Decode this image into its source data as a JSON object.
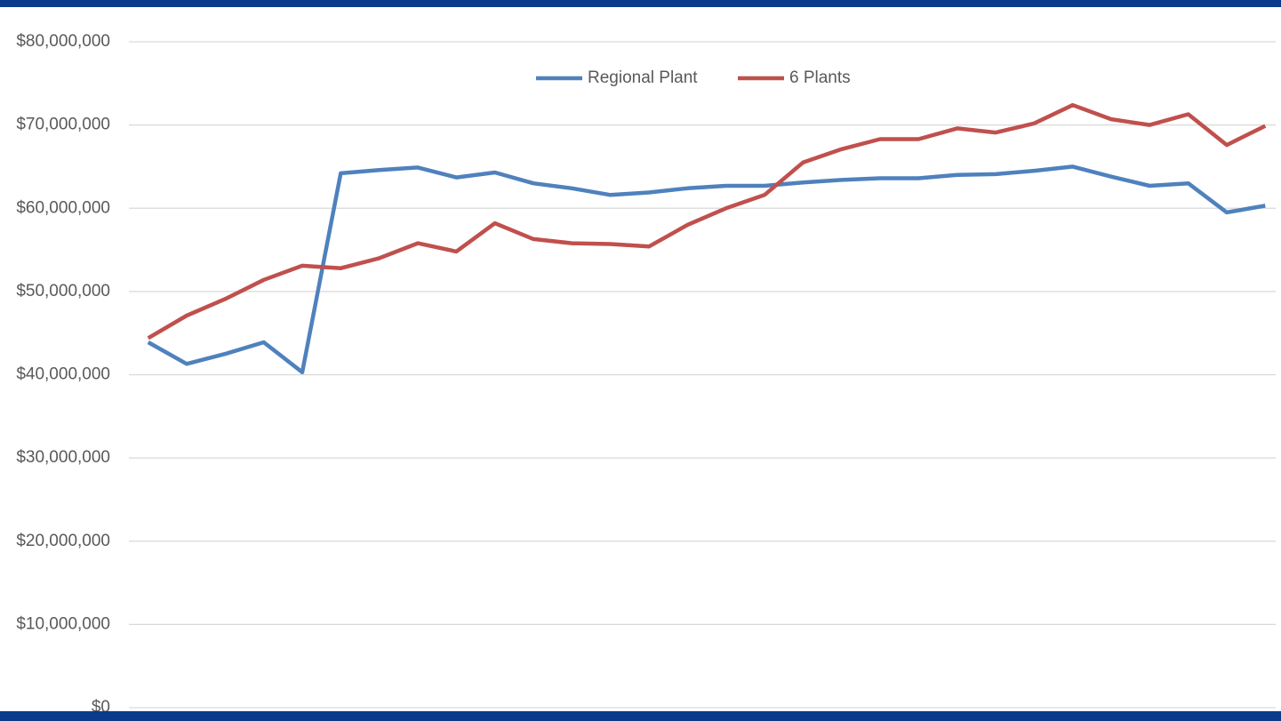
{
  "chart_data": {
    "type": "line",
    "categories": [
      null,
      null,
      null,
      null,
      null,
      null,
      null,
      null,
      null,
      null,
      null,
      null,
      null,
      null,
      null,
      null,
      null,
      null,
      null,
      null,
      null,
      null,
      null,
      null,
      null,
      null,
      null,
      null,
      null,
      null
    ],
    "series": [
      {
        "name": "Regional Plant",
        "color": "#4f81bd",
        "values": [
          43900000,
          41300000,
          42500000,
          43900000,
          40300000,
          64200000,
          64600000,
          64900000,
          63700000,
          64300000,
          63000000,
          62400000,
          61600000,
          61900000,
          62400000,
          62700000,
          62700000,
          63100000,
          63400000,
          63600000,
          63600000,
          64000000,
          64100000,
          64500000,
          65000000,
          63800000,
          62700000,
          63000000,
          59500000,
          60300000
        ]
      },
      {
        "name": "6 Plants",
        "color": "#c0504d",
        "values": [
          44400000,
          47100000,
          49100000,
          51400000,
          53100000,
          52800000,
          54000000,
          55800000,
          54800000,
          58200000,
          56300000,
          55800000,
          55700000,
          55400000,
          58000000,
          60000000,
          61600000,
          65500000,
          67100000,
          68300000,
          68300000,
          69600000,
          69100000,
          70200000,
          72400000,
          70700000,
          70000000,
          71300000,
          67600000,
          69900000
        ]
      }
    ],
    "ylim": [
      0,
      80000000
    ],
    "yticks": [
      {
        "value": 0,
        "label": "$0"
      },
      {
        "value": 10000000,
        "label": "$10,000,000"
      },
      {
        "value": 20000000,
        "label": "$20,000,000"
      },
      {
        "value": 30000000,
        "label": "$30,000,000"
      },
      {
        "value": 40000000,
        "label": "$40,000,000"
      },
      {
        "value": 50000000,
        "label": "$50,000,000"
      },
      {
        "value": 60000000,
        "label": "$60,000,000"
      },
      {
        "value": 70000000,
        "label": "$70,000,000"
      },
      {
        "value": 80000000,
        "label": "$80,000,000"
      }
    ],
    "grid": true,
    "legend": "top"
  }
}
